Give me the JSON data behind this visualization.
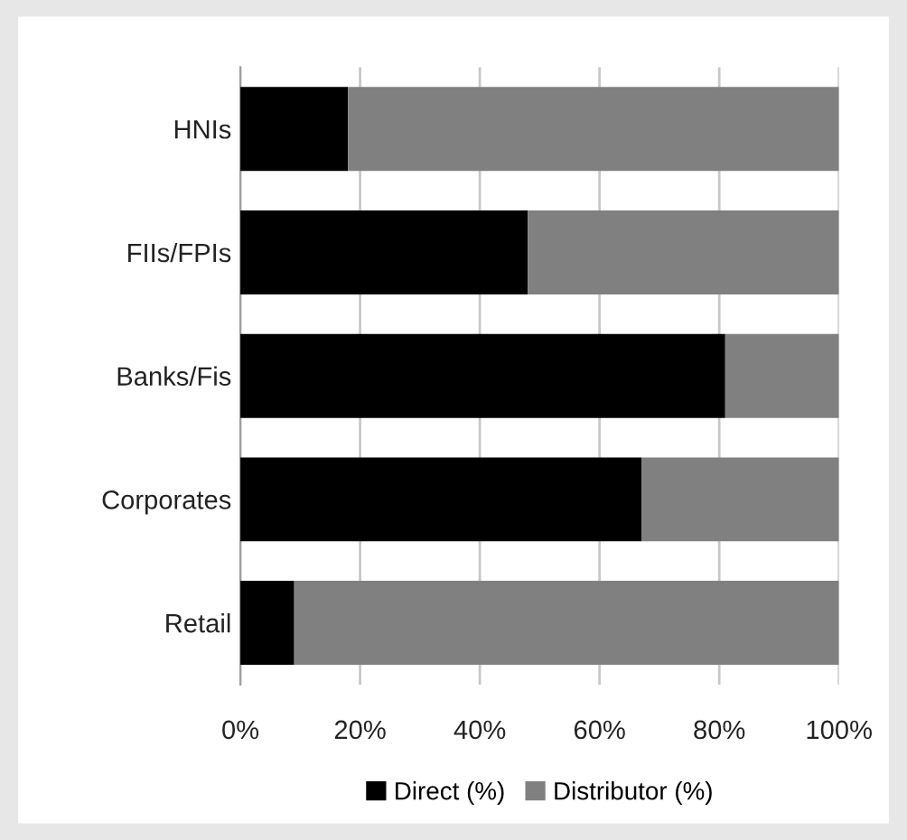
{
  "chart_data": {
    "type": "bar",
    "orientation": "horizontal",
    "stacked": true,
    "categories": [
      "HNIs",
      "FIIs/FPIs",
      "Banks/Fis",
      "Corporates",
      "Retail"
    ],
    "series": [
      {
        "name": "Direct (%)",
        "color": "#000000",
        "values": [
          18,
          48,
          81,
          67,
          9
        ]
      },
      {
        "name": "Distributor (%)",
        "color": "#808080",
        "values": [
          82,
          52,
          19,
          33,
          91
        ]
      }
    ],
    "xlim": [
      0,
      100
    ],
    "xticks": [
      {
        "value": 0,
        "label": "0%"
      },
      {
        "value": 20,
        "label": "20%"
      },
      {
        "value": 40,
        "label": "40%"
      },
      {
        "value": 60,
        "label": "60%"
      },
      {
        "value": 80,
        "label": "80%"
      },
      {
        "value": 100,
        "label": "100%"
      }
    ],
    "grid": "x",
    "legend": "bottom"
  }
}
